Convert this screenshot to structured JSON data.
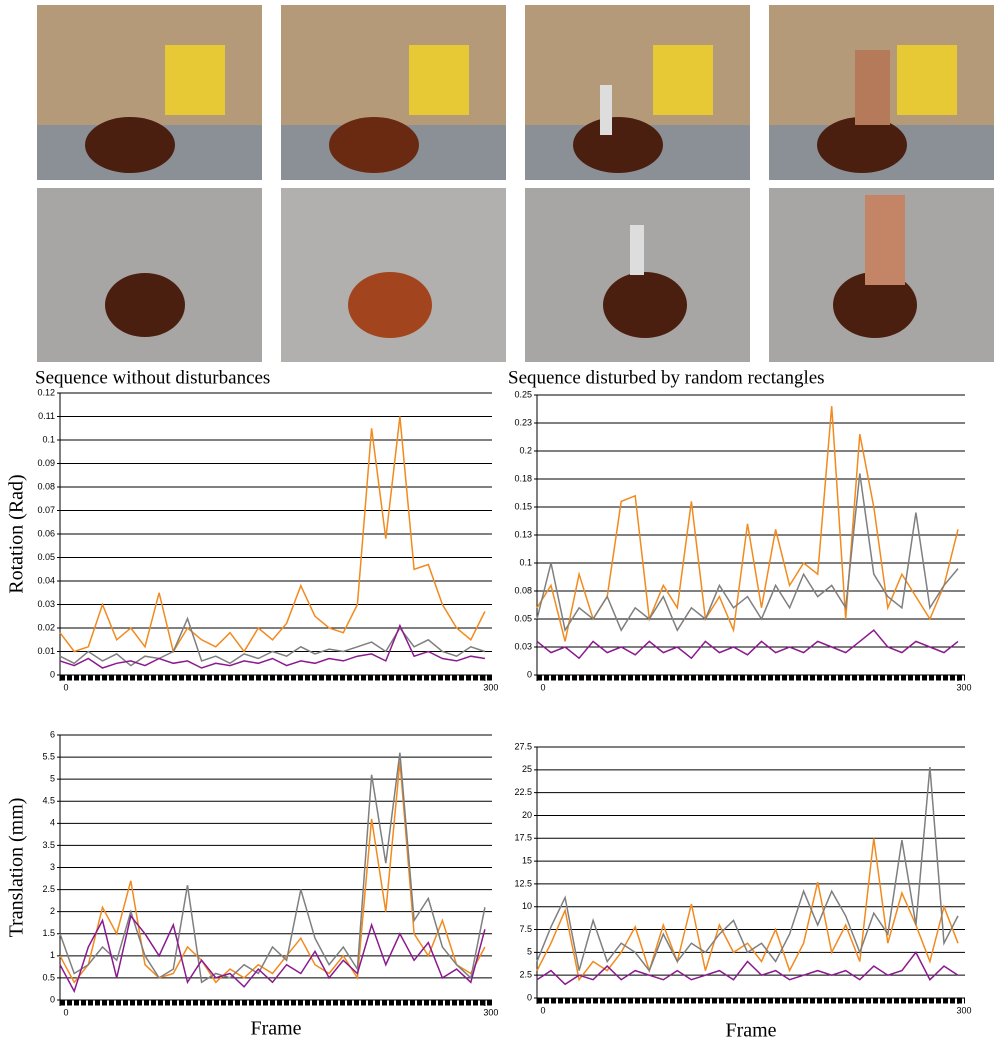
{
  "chart_data": [
    {
      "type": "line",
      "title": "Sequence without disturbances",
      "y_label": "Rotation (Rad)",
      "x": [
        0,
        10,
        20,
        30,
        40,
        50,
        60,
        70,
        80,
        90,
        100,
        110,
        120,
        130,
        140,
        150,
        160,
        170,
        180,
        190,
        200,
        210,
        220,
        230,
        240,
        250,
        260,
        270,
        280,
        290,
        300
      ],
      "series": [
        {
          "color": "#f28a1e",
          "values": [
            0.018,
            0.01,
            0.012,
            0.03,
            0.015,
            0.02,
            0.012,
            0.035,
            0.01,
            0.02,
            0.015,
            0.012,
            0.018,
            0.01,
            0.02,
            0.015,
            0.022,
            0.038,
            0.025,
            0.02,
            0.018,
            0.03,
            0.105,
            0.058,
            0.11,
            0.045,
            0.047,
            0.03,
            0.02,
            0.015,
            0.027
          ]
        },
        {
          "color": "#7f7f7f",
          "values": [
            0.008,
            0.005,
            0.01,
            0.006,
            0.009,
            0.004,
            0.008,
            0.007,
            0.01,
            0.024,
            0.006,
            0.008,
            0.005,
            0.009,
            0.007,
            0.01,
            0.008,
            0.012,
            0.009,
            0.011,
            0.01,
            0.012,
            0.014,
            0.01,
            0.02,
            0.012,
            0.015,
            0.01,
            0.008,
            0.012,
            0.01
          ]
        },
        {
          "color": "#8b1a8f",
          "values": [
            0.006,
            0.004,
            0.007,
            0.003,
            0.005,
            0.006,
            0.004,
            0.007,
            0.005,
            0.006,
            0.003,
            0.005,
            0.004,
            0.006,
            0.005,
            0.007,
            0.004,
            0.006,
            0.005,
            0.007,
            0.006,
            0.008,
            0.009,
            0.006,
            0.021,
            0.008,
            0.01,
            0.007,
            0.006,
            0.008,
            0.007
          ]
        }
      ],
      "xlim": [
        0,
        305
      ],
      "xticks": [
        0,
        300
      ],
      "ylim": [
        0,
        0.12
      ],
      "yticks": [
        0,
        0.01,
        0.02,
        0.03,
        0.04,
        0.05,
        0.06,
        0.07,
        0.08,
        0.09,
        0.1,
        0.11,
        0.12
      ],
      "grid": true
    },
    {
      "type": "line",
      "title": "Sequence disturbed by random rectangles",
      "x": [
        0,
        10,
        20,
        30,
        40,
        50,
        60,
        70,
        80,
        90,
        100,
        110,
        120,
        130,
        140,
        150,
        160,
        170,
        180,
        190,
        200,
        210,
        220,
        230,
        240,
        250,
        260,
        270,
        280,
        290,
        300
      ],
      "series": [
        {
          "color": "#f28a1e",
          "values": [
            0.06,
            0.08,
            0.03,
            0.09,
            0.05,
            0.07,
            0.155,
            0.16,
            0.05,
            0.08,
            0.06,
            0.155,
            0.05,
            0.07,
            0.04,
            0.135,
            0.06,
            0.13,
            0.08,
            0.1,
            0.09,
            0.24,
            0.05,
            0.215,
            0.15,
            0.06,
            0.09,
            0.07,
            0.05,
            0.08,
            0.13
          ]
        },
        {
          "color": "#7f7f7f",
          "values": [
            0.05,
            0.1,
            0.04,
            0.06,
            0.05,
            0.07,
            0.04,
            0.06,
            0.05,
            0.07,
            0.04,
            0.06,
            0.05,
            0.08,
            0.06,
            0.07,
            0.05,
            0.08,
            0.06,
            0.09,
            0.07,
            0.08,
            0.06,
            0.18,
            0.09,
            0.07,
            0.06,
            0.145,
            0.06,
            0.08,
            0.095
          ]
        },
        {
          "color": "#8b1a8f",
          "values": [
            0.03,
            0.02,
            0.025,
            0.015,
            0.03,
            0.02,
            0.025,
            0.018,
            0.03,
            0.02,
            0.025,
            0.015,
            0.03,
            0.02,
            0.025,
            0.018,
            0.03,
            0.02,
            0.025,
            0.02,
            0.03,
            0.025,
            0.02,
            0.03,
            0.04,
            0.025,
            0.02,
            0.03,
            0.025,
            0.02,
            0.03
          ]
        }
      ],
      "xlim": [
        0,
        305
      ],
      "xticks": [
        0,
        300
      ],
      "ylim": [
        0,
        0.25
      ],
      "yticks": [
        0,
        {
          "value": 0.025,
          "label": "0.03"
        },
        0.05,
        {
          "value": 0.075,
          "label": "0.08"
        },
        0.1,
        {
          "value": 0.125,
          "label": "0.13"
        },
        0.15,
        {
          "value": 0.175,
          "label": "0.18"
        },
        0.2,
        {
          "value": 0.225,
          "label": "0.23"
        },
        0.25
      ],
      "grid": true
    },
    {
      "type": "line",
      "y_label": "Translation (mm)",
      "x_label": "Frame",
      "x": [
        0,
        10,
        20,
        30,
        40,
        50,
        60,
        70,
        80,
        90,
        100,
        110,
        120,
        130,
        140,
        150,
        160,
        170,
        180,
        190,
        200,
        210,
        220,
        230,
        240,
        250,
        260,
        270,
        280,
        290,
        300
      ],
      "series": [
        {
          "color": "#f28a1e",
          "values": [
            1.0,
            0.4,
            0.8,
            2.1,
            1.5,
            2.7,
            0.8,
            0.5,
            0.6,
            1.2,
            0.9,
            0.4,
            0.7,
            0.5,
            0.8,
            0.6,
            1.0,
            1.4,
            0.8,
            0.6,
            1.0,
            0.5,
            4.1,
            2.0,
            5.4,
            1.5,
            1.0,
            1.8,
            0.8,
            0.6,
            1.2
          ]
        },
        {
          "color": "#7f7f7f",
          "values": [
            1.5,
            0.6,
            0.8,
            1.2,
            0.9,
            2.0,
            1.0,
            0.5,
            0.7,
            2.6,
            0.4,
            0.6,
            0.5,
            0.8,
            0.6,
            1.2,
            0.9,
            2.5,
            1.4,
            0.8,
            1.2,
            0.7,
            5.1,
            3.1,
            5.6,
            1.8,
            2.3,
            1.2,
            0.8,
            0.5,
            2.1
          ]
        },
        {
          "color": "#8b1a8f",
          "values": [
            0.8,
            0.2,
            1.2,
            1.8,
            0.5,
            1.9,
            1.5,
            1.0,
            1.7,
            0.4,
            0.9,
            0.5,
            0.6,
            0.3,
            0.7,
            0.4,
            0.8,
            0.6,
            1.1,
            0.5,
            0.9,
            0.6,
            1.7,
            0.8,
            1.5,
            0.9,
            1.3,
            0.5,
            0.7,
            0.4,
            1.6
          ]
        }
      ],
      "xlim": [
        0,
        305
      ],
      "xticks": [
        0,
        300
      ],
      "ylim": [
        0,
        6
      ],
      "yticks": [
        0,
        0.5,
        1,
        1.5,
        2,
        2.5,
        3,
        3.5,
        4,
        4.5,
        5,
        5.5,
        6
      ],
      "grid": true
    },
    {
      "type": "line",
      "x_label": "Frame",
      "x": [
        0,
        10,
        20,
        30,
        40,
        50,
        60,
        70,
        80,
        90,
        100,
        110,
        120,
        130,
        140,
        150,
        160,
        170,
        180,
        190,
        200,
        210,
        220,
        230,
        240,
        250,
        260,
        270,
        280,
        290,
        300
      ],
      "series": [
        {
          "color": "#f28a1e",
          "values": [
            3,
            6,
            9.6,
            2,
            4,
            3,
            5,
            7.8,
            3,
            8,
            4,
            10.3,
            3,
            8,
            5,
            6,
            4,
            7.5,
            3,
            6,
            12.7,
            5,
            8,
            4,
            17.5,
            6,
            11.5,
            8,
            4,
            10,
            6
          ]
        },
        {
          "color": "#7f7f7f",
          "values": [
            4,
            7.8,
            11,
            3,
            8.5,
            4,
            6,
            5,
            3,
            7,
            4,
            6,
            5,
            7,
            8.5,
            5,
            6,
            4,
            7,
            11.7,
            8,
            11.7,
            9,
            5,
            9.3,
            7,
            17.3,
            8,
            25.3,
            6,
            9
          ]
        },
        {
          "color": "#8b1a8f",
          "values": [
            2,
            3,
            1.5,
            2.5,
            2,
            3.5,
            2,
            3,
            2.5,
            2,
            3,
            2,
            2.5,
            3,
            2,
            4,
            2.5,
            3,
            2,
            2.5,
            3,
            2.5,
            3,
            2,
            3.5,
            2.5,
            3,
            5,
            2,
            3.5,
            2.5
          ]
        }
      ],
      "xlim": [
        0,
        305
      ],
      "xticks": [
        0,
        300
      ],
      "ylim": [
        0,
        27.5
      ],
      "yticks": [
        0,
        2.5,
        5,
        7.5,
        10,
        12.5,
        15,
        17.5,
        20,
        22.5,
        25,
        27.5
      ],
      "grid": true
    }
  ]
}
